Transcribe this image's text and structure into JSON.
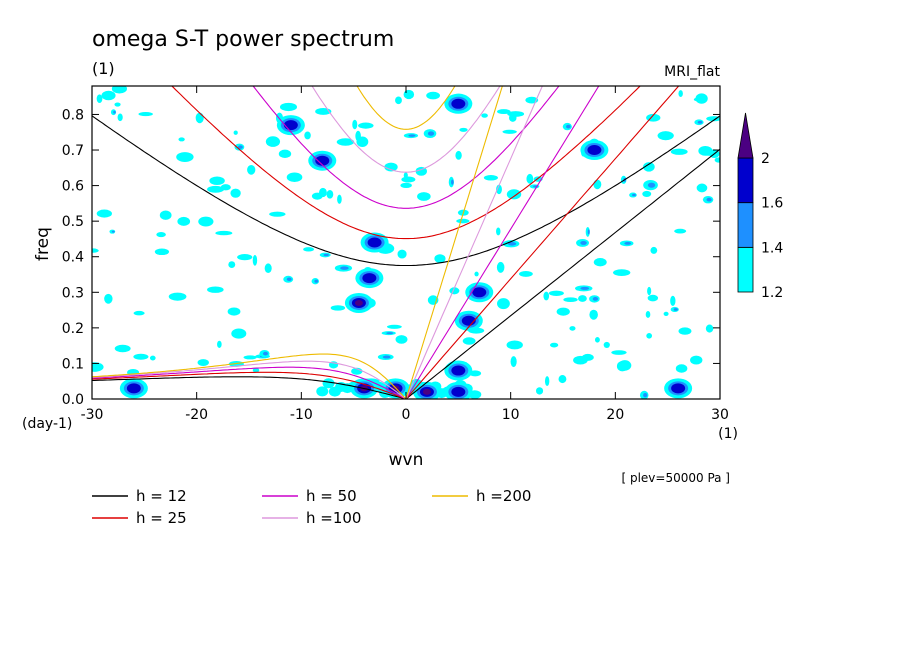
{
  "chart_data": {
    "type": "contour",
    "title": "omega S-T power spectrum",
    "subtitle": "(1)",
    "model_label": "MRI_flat",
    "xlabel": "wvn",
    "ylabel": "freq",
    "x_unit": "(1)",
    "y_unit": "(day-1)",
    "level_note": "[ plev=50000 Pa ]",
    "xlim": [
      -30,
      30
    ],
    "ylim": [
      0.0,
      0.88
    ],
    "x_ticks": [
      -30,
      -20,
      -10,
      0,
      10,
      20,
      30
    ],
    "x_tick_labels": [
      "-30",
      "-20",
      "-10",
      "0",
      "10",
      "20",
      "30"
    ],
    "y_ticks": [
      0.0,
      0.1,
      0.2,
      0.3,
      0.4,
      0.5,
      0.6,
      0.7,
      0.8
    ],
    "y_tick_labels": [
      "0.0",
      "0.1",
      "0.2",
      "0.3",
      "0.4",
      "0.5",
      "0.6",
      "0.7",
      "0.8"
    ],
    "colorbar": {
      "levels": [
        1.2,
        1.4,
        1.6,
        2
      ],
      "level_labels": [
        "1.2",
        "1.4",
        "1.6",
        "2"
      ],
      "colors": [
        "#00ffff",
        "#1e90ff",
        "#0000cd",
        "#4b0082"
      ]
    },
    "dispersion_curves": [
      {
        "label": "h = 12",
        "h": 12,
        "color": "#000000"
      },
      {
        "label": "h = 25",
        "h": 25,
        "color": "#dd0000"
      },
      {
        "label": "h = 50",
        "h": 50,
        "color": "#cc00cc"
      },
      {
        "label": "h =100",
        "h": 100,
        "color": "#dd99dd"
      },
      {
        "label": "h =200",
        "h": 200,
        "color": "#eebb00"
      }
    ],
    "significant_regions": [
      {
        "x": -4.5,
        "y": 0.27,
        "level": 2
      },
      {
        "x": -3.5,
        "y": 0.34,
        "level": 1.6
      },
      {
        "x": -3,
        "y": 0.44,
        "level": 1.6
      },
      {
        "x": 6,
        "y": 0.22,
        "level": 1.6
      },
      {
        "x": 7,
        "y": 0.3,
        "level": 1.6
      },
      {
        "x": -4,
        "y": 0.03,
        "level": 2
      },
      {
        "x": -1,
        "y": 0.03,
        "level": 2
      },
      {
        "x": 2,
        "y": 0.02,
        "level": 2
      },
      {
        "x": 5,
        "y": 0.02,
        "level": 1.6
      },
      {
        "x": 5,
        "y": 0.08,
        "level": 1.6
      },
      {
        "x": -26,
        "y": 0.03,
        "level": 1.6
      },
      {
        "x": 26,
        "y": 0.03,
        "level": 1.6
      },
      {
        "x": -11,
        "y": 0.77,
        "level": 1.6
      },
      {
        "x": -8,
        "y": 0.67,
        "level": 1.6
      },
      {
        "x": 5,
        "y": 0.83,
        "level": 1.6
      },
      {
        "x": 18,
        "y": 0.7,
        "level": 1.6
      }
    ]
  }
}
